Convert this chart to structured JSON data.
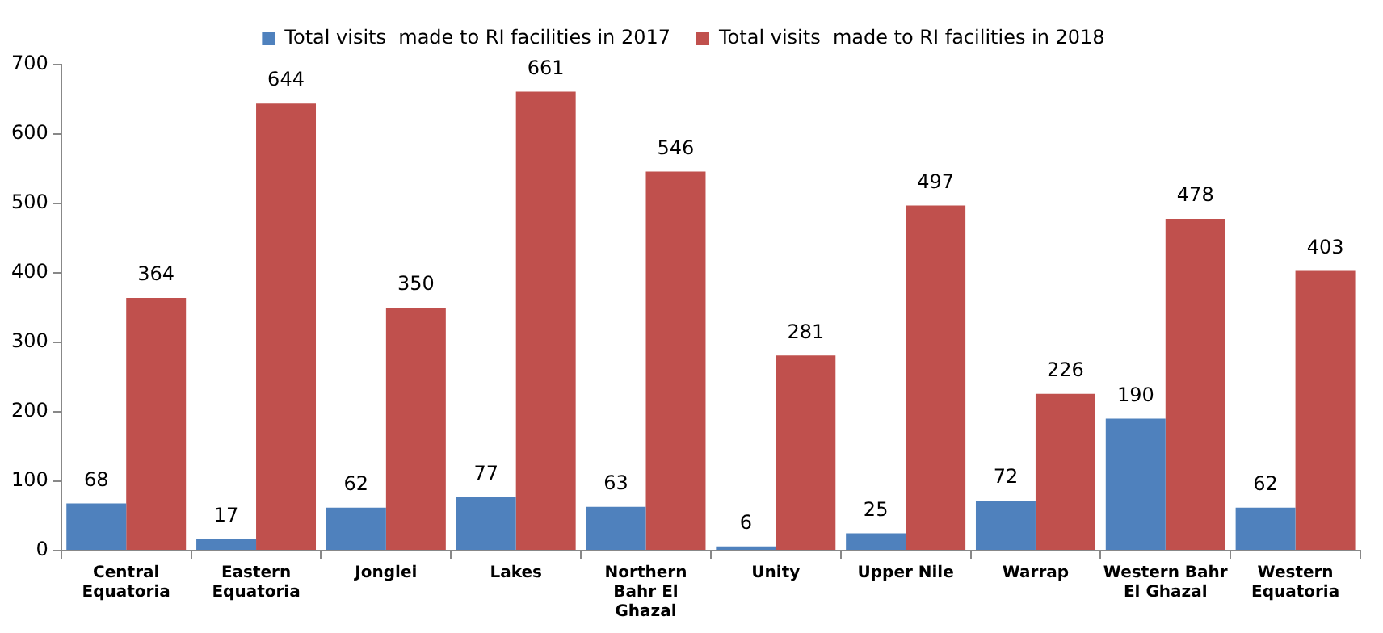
{
  "chart_data": {
    "type": "bar",
    "categories": [
      "Central Equatoria",
      "Eastern Equatoria",
      "Jonglei",
      "Lakes",
      "Northern Bahr El Ghazal",
      "Unity",
      "Upper Nile",
      "Warrap",
      "Western Bahr El Ghazal",
      "Western Equatoria"
    ],
    "series": [
      {
        "name": "Total visits  made to RI facilities in 2017",
        "color": "#4f81bd",
        "values": [
          68,
          17,
          62,
          77,
          63,
          6,
          25,
          72,
          190,
          62
        ]
      },
      {
        "name": "Total visits  made to RI facilities in 2018",
        "color": "#c0504d",
        "values": [
          364,
          644,
          350,
          661,
          546,
          281,
          497,
          226,
          478,
          403
        ]
      }
    ],
    "ylim": [
      0,
      700
    ],
    "yticks": [
      0,
      100,
      200,
      300,
      400,
      500,
      600,
      700
    ],
    "grid": false,
    "legend": "top",
    "data_labels": true
  }
}
